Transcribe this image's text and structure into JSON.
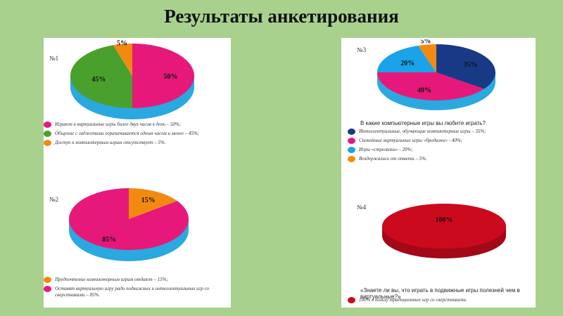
{
  "slide": {
    "title": "Результаты анкетирования"
  },
  "chart_data": [
    {
      "type": "pie",
      "number": "№1",
      "question": "",
      "slices": [
        {
          "label": "Играют в виртуальные игры более двух часов в день – 50%;",
          "value": 50,
          "text": "50%",
          "color": "#e6197a"
        },
        {
          "label": "Общение с гаджетами ограничивается одним часом и менее – 45%;",
          "value": 45,
          "text": "45%",
          "color": "#4aa02c"
        },
        {
          "label": "Доступ к компьютерным играм отсутствует – 5%.",
          "value": 5,
          "text": "5%",
          "color": "#f28a12"
        }
      ]
    },
    {
      "type": "pie",
      "number": "№2",
      "question": "",
      "slices": [
        {
          "label": "Предпочтение компьютерным играм отдают – 15%;",
          "value": 15,
          "text": "15%",
          "color": "#f28a12"
        },
        {
          "label": "Оставят виртуальную игру ради подвижных и интеллектуальных игр со сверстниками – 85%.",
          "value": 85,
          "text": "85%",
          "color": "#e6197a"
        }
      ]
    },
    {
      "type": "pie",
      "number": "№3",
      "question": "В какие компьютерные игры вы любите играть?",
      "slices": [
        {
          "label": "Интеллектуальные, обучающие компьютерные игры – 35%;",
          "value": 35,
          "text": "35%",
          "color": "#183a86"
        },
        {
          "label": "Спокойные виртуальные игры «бродилки» - 40%;",
          "value": 40,
          "text": "40%",
          "color": "#e6197a"
        },
        {
          "label": "Игры «стрелялки» - 20%;",
          "value": 20,
          "text": "20%",
          "color": "#1aa3e8"
        },
        {
          "label": "Воздержались от ответа – 5%.",
          "value": 5,
          "text": "5%",
          "color": "#f28a12"
        }
      ]
    },
    {
      "type": "pie",
      "number": "№4",
      "question": "«Знаете ли вы, что играть в подвижные игры полезней чем в виртуальные?»",
      "slices": [
        {
          "label": "100% в пользу традиционных игр со сверстниками.",
          "value": 100,
          "text": "100%",
          "color": "#cc0a1e"
        }
      ]
    }
  ]
}
